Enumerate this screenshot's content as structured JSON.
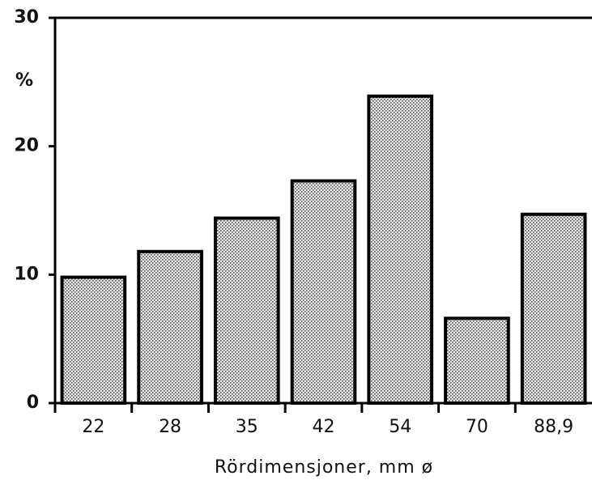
{
  "chart_data": {
    "type": "bar",
    "y_label": "%",
    "x_label": "Rördimensjoner, mm ø",
    "categories": [
      "22",
      "28",
      "35",
      "42",
      "54",
      "70",
      "88,9"
    ],
    "values": [
      9.8,
      11.8,
      14.4,
      17.3,
      23.9,
      6.6,
      14.7
    ],
    "color": "#c8c8c8",
    "ylim": [
      0,
      30
    ],
    "yticks": [
      0,
      10,
      20,
      30
    ],
    "grid": false
  }
}
